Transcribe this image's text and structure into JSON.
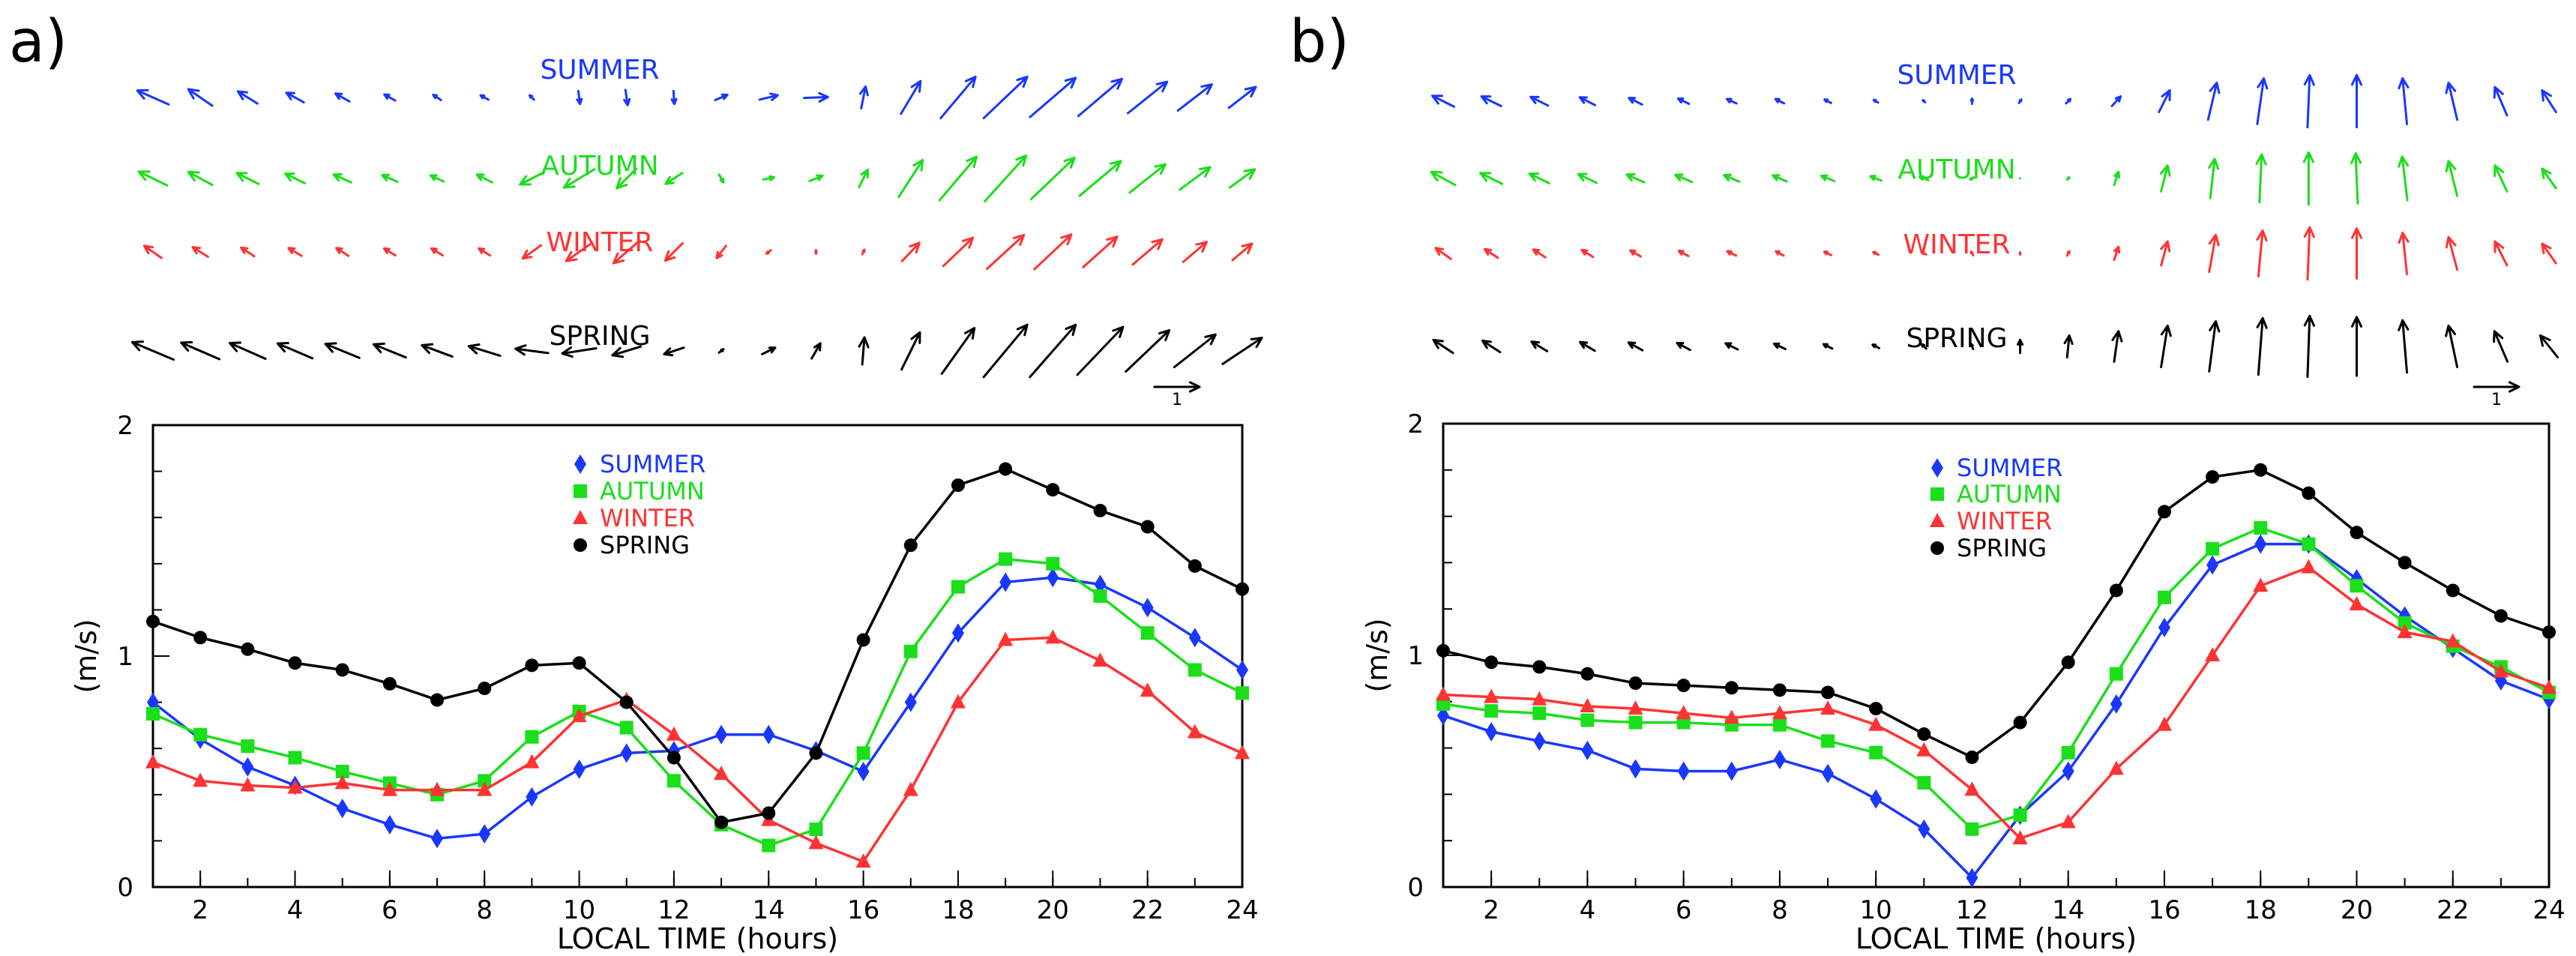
{
  "chart_data": [
    {
      "panel_label": "a)",
      "type": "line",
      "xlabel": "LOCAL TIME (hours)",
      "ylabel": "(m/s)",
      "xlim": [
        1,
        24
      ],
      "ylim": [
        0,
        2
      ],
      "x_ticks": [
        "2",
        "4",
        "6",
        "8",
        "10",
        "12",
        "14",
        "16",
        "18",
        "20",
        "22",
        "24"
      ],
      "y_ticks": [
        "0",
        "1",
        "2"
      ],
      "legend": [
        "SUMMER",
        "AUTUMN",
        "WINTER",
        "SPRING"
      ],
      "x": [
        1,
        2,
        3,
        4,
        5,
        6,
        7,
        8,
        9,
        10,
        11,
        12,
        13,
        14,
        15,
        16,
        17,
        18,
        19,
        20,
        21,
        22,
        23,
        24
      ],
      "series": [
        {
          "name": "SUMMER",
          "marker": "diamond",
          "values": [
            0.8,
            0.64,
            0.52,
            0.44,
            0.34,
            0.27,
            0.21,
            0.23,
            0.39,
            0.51,
            0.58,
            0.59,
            0.66,
            0.66,
            0.59,
            0.5,
            0.8,
            1.1,
            1.32,
            1.34,
            1.31,
            1.21,
            1.08,
            0.94
          ]
        },
        {
          "name": "AUTUMN",
          "marker": "square",
          "values": [
            0.75,
            0.66,
            0.61,
            0.56,
            0.5,
            0.45,
            0.4,
            0.46,
            0.65,
            0.76,
            0.69,
            0.46,
            0.27,
            0.18,
            0.25,
            0.58,
            1.02,
            1.3,
            1.42,
            1.4,
            1.26,
            1.1,
            0.94,
            0.84
          ]
        },
        {
          "name": "WINTER",
          "marker": "triangle",
          "values": [
            0.54,
            0.46,
            0.44,
            0.43,
            0.45,
            0.42,
            0.42,
            0.42,
            0.54,
            0.74,
            0.81,
            0.66,
            0.49,
            0.29,
            0.19,
            0.11,
            0.42,
            0.8,
            1.07,
            1.08,
            0.98,
            0.85,
            0.67,
            0.58
          ]
        },
        {
          "name": "SPRING",
          "marker": "circle",
          "values": [
            1.15,
            1.08,
            1.03,
            0.97,
            0.94,
            0.88,
            0.81,
            0.86,
            0.96,
            0.97,
            0.8,
            0.56,
            0.28,
            0.32,
            0.58,
            1.07,
            1.48,
            1.74,
            1.81,
            1.72,
            1.63,
            1.56,
            1.39,
            1.29
          ]
        }
      ],
      "wind_vectors": {
        "labels": [
          "SUMMER",
          "AUTUMN",
          "WINTER",
          "SPRING"
        ],
        "reference_label": "1",
        "reference_speed_m_s": 1,
        "rows": [
          {
            "name": "SUMMER",
            "u": [
              -0.72,
              -0.55,
              -0.45,
              -0.4,
              -0.32,
              -0.25,
              -0.18,
              -0.18,
              -0.1,
              0.04,
              0.05,
              0.02,
              0.28,
              0.42,
              0.55,
              0.1,
              0.45,
              0.8,
              1.0,
              1.05,
              1.0,
              0.9,
              0.78,
              0.62
            ],
            "v": [
              0.32,
              0.38,
              0.28,
              0.22,
              0.18,
              0.14,
              0.12,
              0.1,
              0.1,
              -0.3,
              -0.35,
              -0.3,
              0.12,
              0.1,
              0.02,
              0.5,
              0.75,
              0.95,
              0.95,
              0.9,
              0.85,
              0.72,
              0.6,
              0.48
            ]
          },
          {
            "name": "AUTUMN",
            "u": [
              -0.65,
              -0.55,
              -0.5,
              -0.45,
              -0.4,
              -0.35,
              -0.3,
              -0.35,
              -0.55,
              -0.7,
              -0.45,
              -0.38,
              0.1,
              0.25,
              0.3,
              0.2,
              0.55,
              0.85,
              0.95,
              1.0,
              0.95,
              0.82,
              0.7,
              0.58
            ],
            "v": [
              0.32,
              0.3,
              0.25,
              0.22,
              0.18,
              0.15,
              0.14,
              0.18,
              -0.28,
              -0.42,
              -0.45,
              -0.25,
              -0.18,
              0.05,
              0.12,
              0.4,
              0.85,
              1.0,
              1.05,
              0.95,
              0.8,
              0.65,
              0.52,
              0.42
            ]
          },
          {
            "name": "WINTER",
            "u": [
              -0.4,
              -0.35,
              -0.3,
              -0.3,
              -0.28,
              -0.26,
              -0.26,
              -0.26,
              -0.42,
              -0.6,
              -0.6,
              -0.4,
              -0.22,
              -0.1,
              0.0,
              0.05,
              0.4,
              0.68,
              0.85,
              0.85,
              0.78,
              0.68,
              0.54,
              0.45
            ],
            "v": [
              0.28,
              0.22,
              0.2,
              0.18,
              0.18,
              0.16,
              0.16,
              0.16,
              -0.3,
              -0.42,
              -0.52,
              -0.4,
              -0.28,
              -0.08,
              0.08,
              0.1,
              0.42,
              0.65,
              0.78,
              0.8,
              0.7,
              0.58,
              0.46,
              0.38
            ]
          },
          {
            "name": "SPRING",
            "u": [
              -0.95,
              -0.88,
              -0.82,
              -0.8,
              -0.78,
              -0.74,
              -0.7,
              -0.72,
              -0.75,
              -0.78,
              -0.65,
              -0.45,
              0.1,
              0.3,
              0.2,
              0.05,
              0.42,
              0.75,
              1.0,
              1.05,
              1.05,
              1.0,
              0.95,
              0.9
            ],
            "v": [
              0.4,
              0.38,
              0.36,
              0.34,
              0.32,
              0.3,
              0.26,
              0.22,
              0.1,
              -0.12,
              -0.2,
              -0.15,
              0.08,
              0.15,
              0.35,
              0.62,
              0.85,
              1.05,
              1.2,
              1.2,
              1.1,
              0.95,
              0.75,
              0.6
            ]
          }
        ]
      }
    },
    {
      "panel_label": "b)",
      "type": "line",
      "xlabel": "LOCAL TIME (hours)",
      "ylabel": "(m/s)",
      "xlim": [
        1,
        24
      ],
      "ylim": [
        0,
        2
      ],
      "x_ticks": [
        "2",
        "4",
        "6",
        "8",
        "10",
        "12",
        "14",
        "16",
        "18",
        "20",
        "22",
        "24"
      ],
      "y_ticks": [
        "0",
        "1",
        "2"
      ],
      "legend": [
        "SUMMER",
        "AUTUMN",
        "WINTER",
        "SPRING"
      ],
      "x": [
        1,
        2,
        3,
        4,
        5,
        6,
        7,
        8,
        9,
        10,
        11,
        12,
        13,
        14,
        15,
        16,
        17,
        18,
        19,
        20,
        21,
        22,
        23,
        24
      ],
      "series": [
        {
          "name": "SUMMER",
          "marker": "diamond",
          "values": [
            0.74,
            0.67,
            0.63,
            0.59,
            0.51,
            0.5,
            0.5,
            0.55,
            0.49,
            0.38,
            0.25,
            0.04,
            0.31,
            0.5,
            0.79,
            1.12,
            1.39,
            1.48,
            1.48,
            1.33,
            1.17,
            1.03,
            0.89,
            0.81
          ]
        },
        {
          "name": "AUTUMN",
          "marker": "square",
          "values": [
            0.79,
            0.76,
            0.75,
            0.72,
            0.71,
            0.71,
            0.7,
            0.7,
            0.63,
            0.58,
            0.45,
            0.25,
            0.31,
            0.58,
            0.92,
            1.25,
            1.46,
            1.55,
            1.48,
            1.3,
            1.14,
            1.04,
            0.95,
            0.84
          ]
        },
        {
          "name": "WINTER",
          "marker": "triangle",
          "values": [
            0.83,
            0.82,
            0.81,
            0.78,
            0.77,
            0.75,
            0.73,
            0.75,
            0.77,
            0.7,
            0.59,
            0.42,
            0.21,
            0.28,
            0.51,
            0.7,
            1.0,
            1.3,
            1.38,
            1.22,
            1.1,
            1.06,
            0.93,
            0.86
          ]
        },
        {
          "name": "SPRING",
          "marker": "circle",
          "values": [
            1.02,
            0.97,
            0.95,
            0.92,
            0.88,
            0.87,
            0.86,
            0.85,
            0.84,
            0.77,
            0.66,
            0.56,
            0.71,
            0.97,
            1.28,
            1.62,
            1.77,
            1.8,
            1.7,
            1.53,
            1.4,
            1.28,
            1.17,
            1.1
          ]
        }
      ],
      "wind_vectors": {
        "labels": [
          "SUMMER",
          "AUTUMN",
          "WINTER",
          "SPRING"
        ],
        "reference_label": "1",
        "reference_speed_m_s": 1,
        "rows": [
          {
            "name": "SUMMER",
            "u": [
              -0.5,
              -0.45,
              -0.4,
              -0.35,
              -0.3,
              -0.25,
              -0.22,
              -0.2,
              -0.15,
              -0.1,
              -0.05,
              0.0,
              0.05,
              0.1,
              0.2,
              0.25,
              0.2,
              0.15,
              0.05,
              0.0,
              -0.1,
              -0.2,
              -0.28,
              -0.32
            ],
            "v": [
              0.25,
              0.22,
              0.2,
              0.18,
              0.15,
              0.12,
              0.1,
              0.1,
              0.08,
              0.06,
              0.05,
              0.12,
              0.08,
              0.1,
              0.22,
              0.5,
              0.85,
              1.05,
              1.2,
              1.2,
              1.05,
              0.85,
              0.65,
              0.5
            ]
          },
          {
            "name": "AUTUMN",
            "u": [
              -0.55,
              -0.5,
              -0.45,
              -0.42,
              -0.4,
              -0.38,
              -0.35,
              -0.32,
              -0.3,
              -0.25,
              -0.2,
              -0.08,
              0.0,
              0.05,
              0.1,
              0.15,
              0.1,
              0.05,
              0.0,
              -0.05,
              -0.12,
              -0.2,
              -0.28,
              -0.32
            ],
            "v": [
              0.3,
              0.25,
              0.22,
              0.2,
              0.18,
              0.16,
              0.15,
              0.14,
              0.12,
              0.1,
              0.08,
              -0.05,
              0.0,
              0.05,
              0.3,
              0.6,
              0.9,
              1.1,
              1.2,
              1.15,
              1.0,
              0.8,
              0.6,
              0.45
            ]
          },
          {
            "name": "WINTER",
            "u": [
              -0.35,
              -0.3,
              -0.28,
              -0.26,
              -0.24,
              -0.22,
              -0.2,
              -0.18,
              -0.16,
              -0.12,
              -0.1,
              -0.05,
              0.0,
              0.05,
              0.1,
              0.15,
              0.15,
              0.1,
              0.05,
              0.0,
              -0.1,
              -0.2,
              -0.28,
              -0.32
            ],
            "v": [
              0.25,
              0.2,
              0.18,
              0.16,
              0.14,
              0.12,
              0.1,
              0.1,
              0.08,
              0.06,
              0.05,
              0.08,
              0.05,
              0.1,
              0.3,
              0.55,
              0.85,
              1.05,
              1.2,
              1.15,
              0.95,
              0.75,
              0.55,
              0.45
            ]
          },
          {
            "name": "SPRING",
            "u": [
              -0.45,
              -0.4,
              -0.36,
              -0.34,
              -0.32,
              -0.3,
              -0.28,
              -0.26,
              -0.2,
              -0.15,
              -0.1,
              -0.05,
              0.0,
              0.05,
              0.1,
              0.15,
              0.15,
              0.1,
              0.05,
              0.0,
              -0.1,
              -0.2,
              -0.3,
              -0.4
            ],
            "v": [
              0.3,
              0.26,
              0.22,
              0.2,
              0.18,
              0.16,
              0.14,
              0.12,
              0.1,
              0.08,
              0.1,
              0.12,
              0.3,
              0.5,
              0.7,
              0.95,
              1.15,
              1.3,
              1.4,
              1.35,
              1.2,
              0.95,
              0.7,
              0.5
            ]
          }
        ]
      }
    }
  ],
  "colors": {
    "SUMMER": "#1a37ff",
    "AUTUMN": "#1adf1a",
    "WINTER": "#ff3333",
    "SPRING": "#000000",
    "axis": "#000000"
  }
}
